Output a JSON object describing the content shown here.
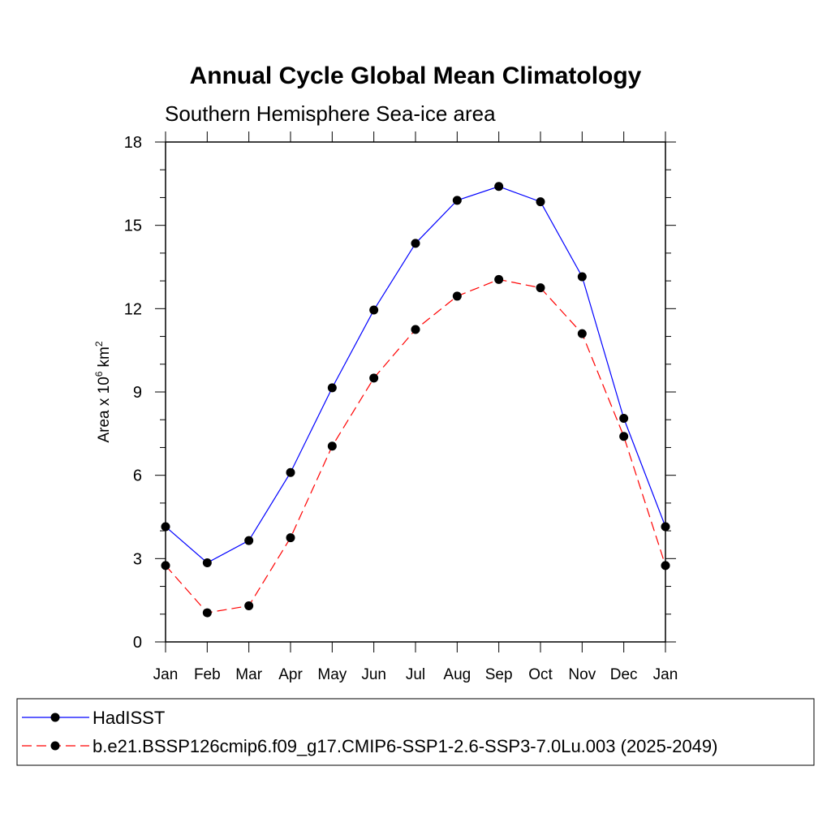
{
  "chart_data": {
    "type": "line",
    "title": "Annual Cycle Global Mean Climatology",
    "subtitle": "Southern Hemisphere Sea-ice area",
    "ylabel": {
      "prefix": "Area x 10",
      "exponent": "6",
      "unit": "km",
      "unit_exponent": "2"
    },
    "ylim": [
      0,
      18
    ],
    "yticks": [
      0,
      3,
      6,
      9,
      12,
      15,
      18
    ],
    "categories": [
      "Jan",
      "Feb",
      "Mar",
      "Apr",
      "May",
      "Jun",
      "Jul",
      "Aug",
      "Sep",
      "Oct",
      "Nov",
      "Dec",
      "Jan"
    ],
    "series": [
      {
        "name": "HadISST",
        "color": "#0000ff",
        "dash": "solid",
        "values": [
          4.15,
          2.85,
          3.65,
          6.1,
          9.15,
          11.95,
          14.35,
          15.9,
          16.4,
          15.85,
          13.15,
          8.05,
          4.15
        ]
      },
      {
        "name": "b.e21.BSSP126cmip6.f09_g17.CMIP6-SSP1-2.6-SSP3-7.0Lu.003 (2025-2049)",
        "color": "#ff0000",
        "dash": "dashed",
        "values": [
          2.75,
          1.05,
          1.3,
          3.75,
          7.05,
          9.5,
          11.25,
          12.45,
          13.05,
          12.75,
          11.1,
          7.4,
          2.75
        ]
      }
    ],
    "grid": false,
    "legend": "bottom"
  }
}
